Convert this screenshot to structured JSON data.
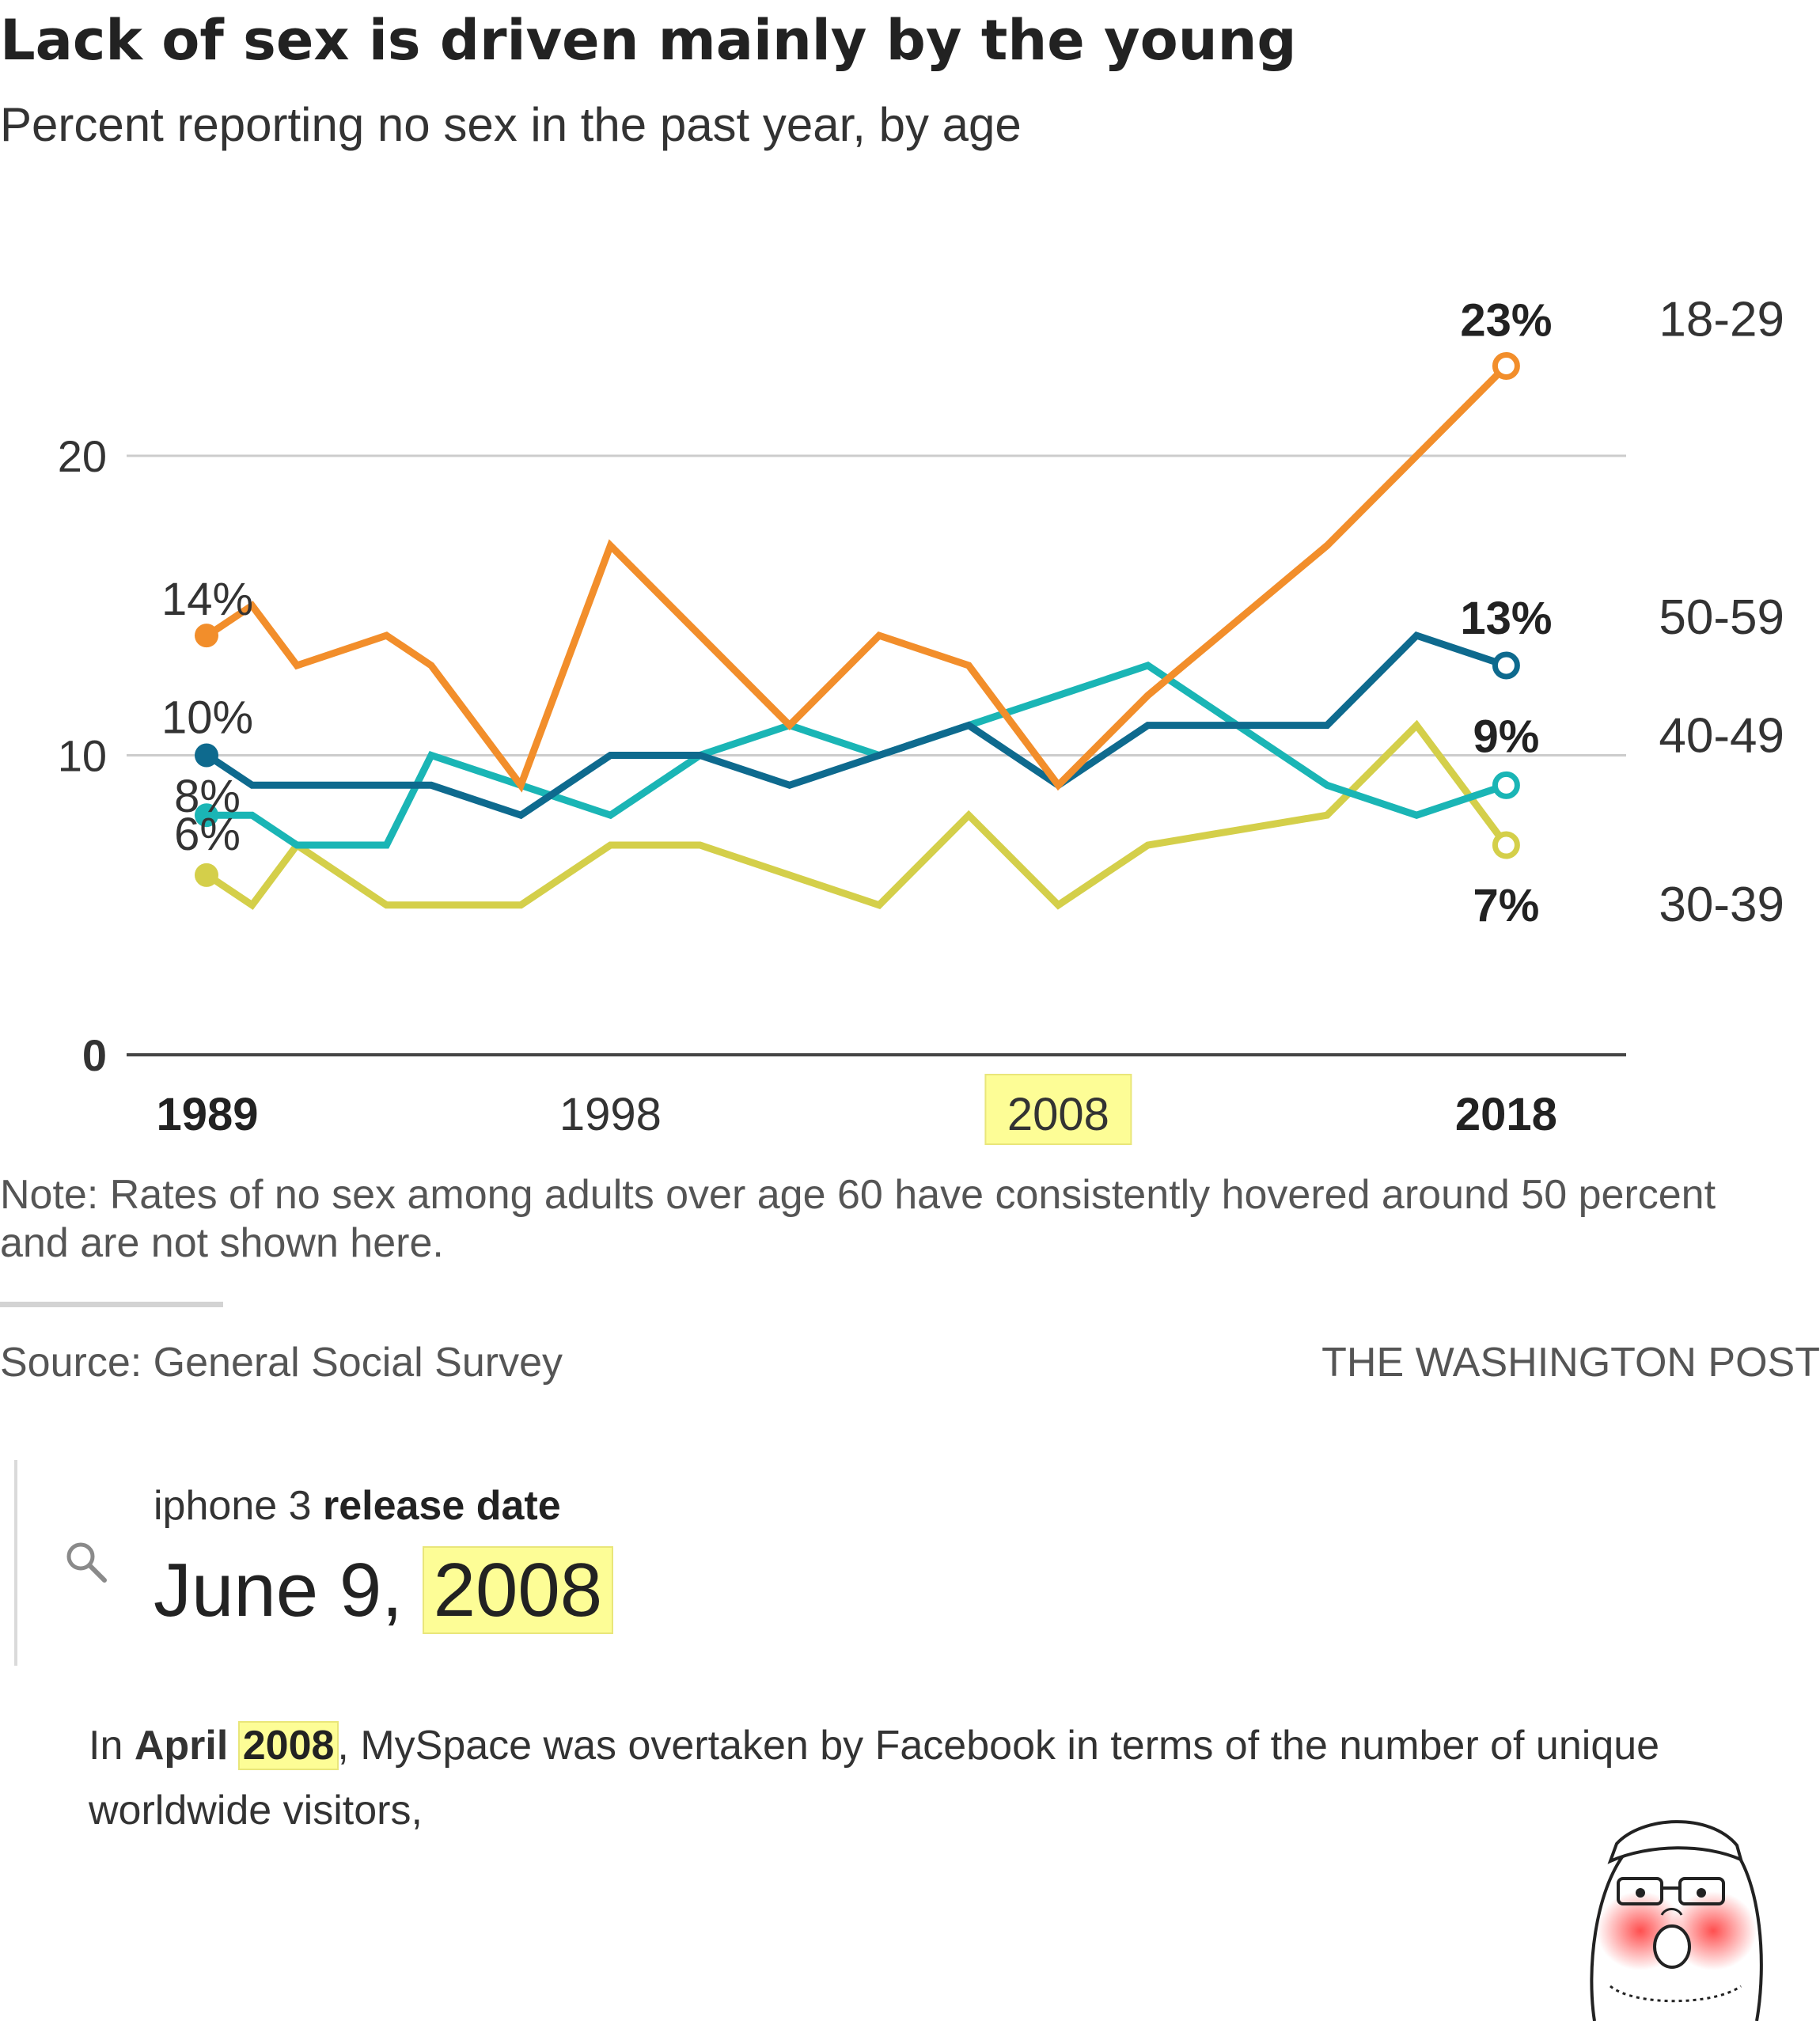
{
  "header": {
    "title": "Lack of sex is driven mainly by the young",
    "subtitle": "Percent reporting no sex in the past year, by age"
  },
  "chart_data": {
    "type": "line",
    "title": "Lack of sex is driven mainly by the young",
    "subtitle": "Percent reporting no sex in the past year, by age",
    "xlabel": "",
    "ylabel": "",
    "x": [
      1989,
      1990,
      1991,
      1993,
      1994,
      1996,
      1998,
      2000,
      2002,
      2004,
      2006,
      2008,
      2010,
      2012,
      2014,
      2016,
      2018
    ],
    "y_ticks": [
      0,
      10,
      20
    ],
    "x_ticks": [
      1989,
      1998,
      2008,
      2018
    ],
    "x_ticks_bold": [
      1989,
      2018
    ],
    "x_tick_highlight": 2008,
    "ylim": [
      0,
      25
    ],
    "xlim": [
      1988,
      2020
    ],
    "grid": "horizontal",
    "series": [
      {
        "name": "18-29",
        "color": "#f28e2b",
        "values": [
          14,
          15,
          13,
          14,
          13,
          9,
          17,
          14,
          11,
          14,
          13,
          9,
          12,
          14.5,
          17,
          20,
          23
        ],
        "start_label": "14%",
        "end_label": "23%"
      },
      {
        "name": "50-59",
        "color": "#0e6a8e",
        "values": [
          10,
          9,
          9,
          9,
          9,
          8,
          10,
          10,
          9,
          10,
          11,
          9,
          11,
          11,
          11,
          14,
          13
        ],
        "start_label": "10%",
        "end_label": "13%"
      },
      {
        "name": "40-49",
        "color": "#1ab5b5",
        "values": [
          8,
          8,
          7,
          7,
          10,
          9,
          8,
          10,
          11,
          10,
          11,
          12,
          13,
          11,
          9,
          8,
          9
        ],
        "start_label": "8%",
        "end_label": "9%"
      },
      {
        "name": "30-39",
        "color": "#d4cf4a",
        "values": [
          6,
          5,
          7,
          5,
          5,
          5,
          7,
          7,
          6,
          5,
          8,
          5,
          7,
          7.5,
          8,
          11,
          7
        ],
        "start_label": "6%",
        "end_label": "7%"
      }
    ]
  },
  "footer": {
    "note": "Note: Rates of no sex among adults over age 60 have consistently hovered around 50 percent and are not shown here.",
    "source": "Source: General Social Survey",
    "credit": "THE WASHINGTON POST"
  },
  "search": {
    "query_plain": "iphone 3",
    "query_bold": "release date",
    "answer_prefix": "June 9,",
    "answer_year": "2008"
  },
  "snippet": {
    "text_start": "In",
    "text_month": "April",
    "text_year": "2008",
    "text_rest": ", MySpace was overtaken by Facebook in terms of the number of unique worldwide visitors,"
  },
  "colors": {
    "highlight": "#fdfd96",
    "gridline": "#cccccc",
    "axis": "#333333"
  },
  "icons": {
    "search": "search-icon",
    "meme": "soyjak-face"
  }
}
